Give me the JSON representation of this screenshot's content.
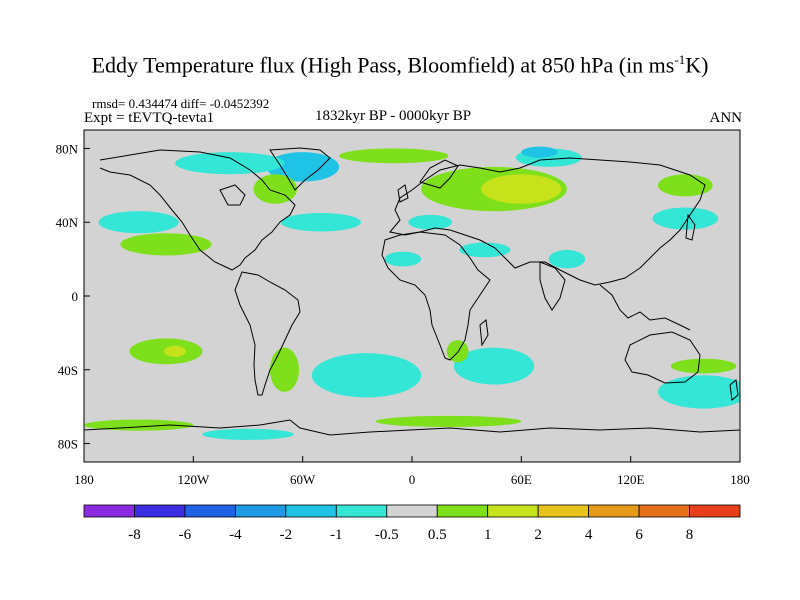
{
  "title_main": "Eddy Temperature flux (High Pass, Bloomfield) at 850 hPa (in ms",
  "title_sup": "-1",
  "title_end": "K)",
  "stats": "rmsd= 0.434474 diff= -0.0452392",
  "experiment": "Expt = tEVTQ-tevta1",
  "period": "1832kyr BP - 0000kyr BP",
  "season": "ANN",
  "map": {
    "lon_range": [
      -180,
      180
    ],
    "lat_range": [
      -90,
      90
    ],
    "x_ticks": [
      {
        "value": -180,
        "label": "180"
      },
      {
        "value": -120,
        "label": "120W"
      },
      {
        "value": -60,
        "label": "60W"
      },
      {
        "value": 0,
        "label": "0"
      },
      {
        "value": 60,
        "label": "60E"
      },
      {
        "value": 120,
        "label": "120E"
      },
      {
        "value": 180,
        "label": "180"
      }
    ],
    "y_ticks": [
      {
        "value": 80,
        "label": "80N"
      },
      {
        "value": 40,
        "label": "40N"
      },
      {
        "value": 0,
        "label": "0"
      },
      {
        "value": -40,
        "label": "40S"
      },
      {
        "value": -80,
        "label": "80S"
      }
    ],
    "background_color": "#d3d3d3"
  },
  "colorbar": {
    "labels": [
      "-8",
      "-6",
      "-4",
      "-2",
      "-1",
      "-0.5",
      "0.5",
      "1",
      "2",
      "4",
      "6",
      "8"
    ],
    "colors": [
      "#8a2be2",
      "#3a2ee0",
      "#1e63e6",
      "#1f9be6",
      "#1ec3e6",
      "#33e6d6",
      "#d3d3d3",
      "#7ee01a",
      "#c5e21a",
      "#e6c21a",
      "#e69a1a",
      "#e6701a",
      "#e6401a"
    ]
  },
  "fields": [
    {
      "name": "north-pacific-positive",
      "color": "#7ee01a",
      "lon": -135,
      "lat": 28,
      "rlon": 25,
      "rlat": 6
    },
    {
      "name": "north-pacific-negative",
      "color": "#33e6d6",
      "lon": -150,
      "lat": 40,
      "rlon": 22,
      "rlat": 6
    },
    {
      "name": "greenland-negative",
      "color": "#1ec3e6",
      "lon": -60,
      "lat": 70,
      "rlon": 20,
      "rlat": 8
    },
    {
      "name": "arctic-canada-negative",
      "color": "#33e6d6",
      "lon": -100,
      "lat": 72,
      "rlon": 30,
      "rlat": 6
    },
    {
      "name": "north-america-positive",
      "color": "#7ee01a",
      "lon": -75,
      "lat": 58,
      "rlon": 12,
      "rlat": 8
    },
    {
      "name": "north-atlantic-negative",
      "color": "#33e6d6",
      "lon": -50,
      "lat": 40,
      "rlon": 22,
      "rlat": 5
    },
    {
      "name": "arctic-positive-band",
      "color": "#7ee01a",
      "lon": -10,
      "lat": 76,
      "rlon": 30,
      "rlat": 4
    },
    {
      "name": "eurasia-positive",
      "color": "#7ee01a",
      "lon": 45,
      "lat": 58,
      "rlon": 40,
      "rlat": 12
    },
    {
      "name": "eurasia-strong-positive",
      "color": "#c5e21a",
      "lon": 60,
      "lat": 58,
      "rlon": 22,
      "rlat": 8
    },
    {
      "name": "siberia-negative",
      "color": "#33e6d6",
      "lon": 75,
      "lat": 75,
      "rlon": 18,
      "rlat": 5
    },
    {
      "name": "kara-strong-negative",
      "color": "#1ec3e6",
      "lon": 70,
      "lat": 78,
      "rlon": 10,
      "rlat": 3
    },
    {
      "name": "east-siberia-positive",
      "color": "#7ee01a",
      "lon": 150,
      "lat": 60,
      "rlon": 15,
      "rlat": 6
    },
    {
      "name": "north-pacific-east-negative",
      "color": "#33e6d6",
      "lon": 150,
      "lat": 42,
      "rlon": 18,
      "rlat": 6
    },
    {
      "name": "mediterranean-negative",
      "color": "#33e6d6",
      "lon": 10,
      "lat": 40,
      "rlon": 12,
      "rlat": 4
    },
    {
      "name": "arabia-negative",
      "color": "#33e6d6",
      "lon": 40,
      "lat": 25,
      "rlon": 14,
      "rlat": 4
    },
    {
      "name": "india-negative",
      "color": "#33e6d6",
      "lon": 85,
      "lat": 20,
      "rlon": 10,
      "rlat": 5
    },
    {
      "name": "west-africa-negative",
      "color": "#33e6d6",
      "lon": -5,
      "lat": 20,
      "rlon": 10,
      "rlat": 4
    },
    {
      "name": "south-pacific-positive",
      "color": "#7ee01a",
      "lon": -135,
      "lat": -30,
      "rlon": 20,
      "rlat": 7
    },
    {
      "name": "south-pacific-strong",
      "color": "#c5e21a",
      "lon": -130,
      "lat": -30,
      "rlon": 6,
      "rlat": 3
    },
    {
      "name": "south-atlantic-negative",
      "color": "#33e6d6",
      "lon": -25,
      "lat": -43,
      "rlon": 30,
      "rlat": 12
    },
    {
      "name": "south-indian-negative",
      "color": "#33e6d6",
      "lon": 45,
      "lat": -38,
      "rlon": 22,
      "rlat": 10
    },
    {
      "name": "australia-south-negative",
      "color": "#33e6d6",
      "lon": 160,
      "lat": -52,
      "rlon": 25,
      "rlat": 9
    },
    {
      "name": "south-pacific-east-positive",
      "color": "#7ee01a",
      "lon": 160,
      "lat": -38,
      "rlon": 18,
      "rlat": 4
    },
    {
      "name": "south-america-positive",
      "color": "#7ee01a",
      "lon": -70,
      "lat": -40,
      "rlon": 8,
      "rlat": 12
    },
    {
      "name": "antarctic-positive",
      "color": "#7ee01a",
      "lon": -150,
      "lat": -70,
      "rlon": 30,
      "rlat": 3
    },
    {
      "name": "antarctic-positive-2",
      "color": "#7ee01a",
      "lon": 20,
      "lat": -68,
      "rlon": 40,
      "rlat": 3
    },
    {
      "name": "antarctic-negative",
      "color": "#33e6d6",
      "lon": -90,
      "lat": -75,
      "rlon": 25,
      "rlat": 3
    },
    {
      "name": "south-africa-positive",
      "color": "#7ee01a",
      "lon": 25,
      "lat": -30,
      "rlon": 6,
      "rlat": 6
    }
  ]
}
